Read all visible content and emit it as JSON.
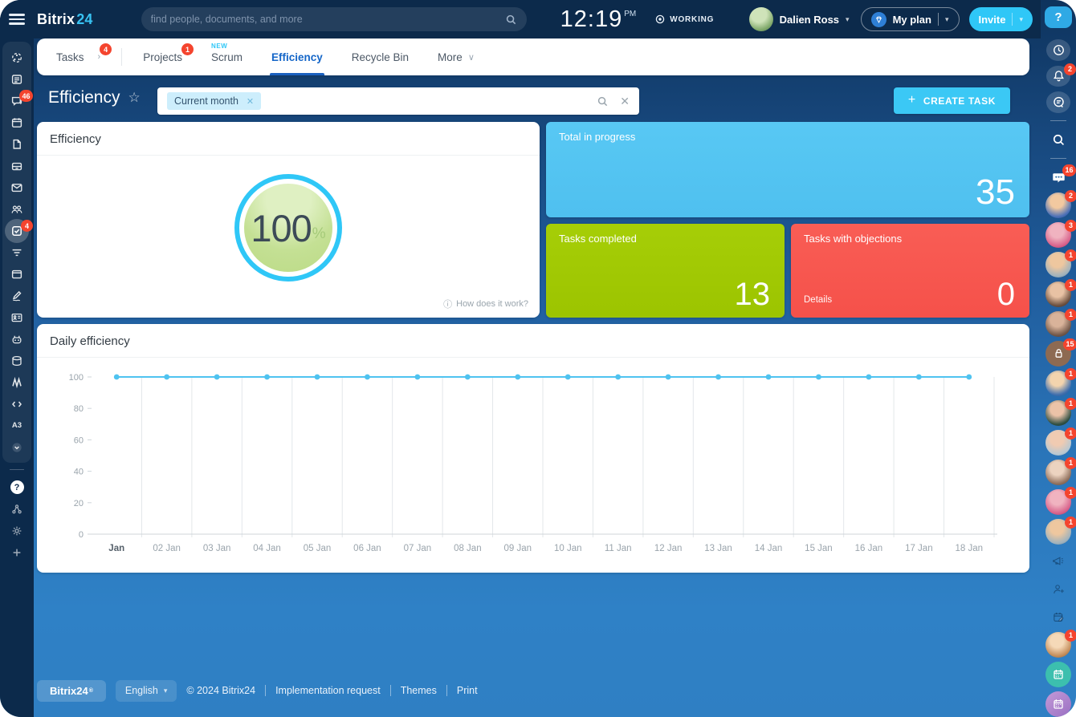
{
  "app": {
    "brand": "Bitrix",
    "brand_num": "24"
  },
  "topbar": {
    "search_placeholder": "find people, documents, and more",
    "time": "12:19",
    "meridiem": "PM",
    "status_label": "WORKING",
    "user_name": "Dalien Ross",
    "my_plan_label": "My plan",
    "invite_label": "Invite"
  },
  "tabs": {
    "tasks": "Tasks",
    "tasks_badge": "4",
    "projects": "Projects",
    "projects_badge": "1",
    "scrum": "Scrum",
    "scrum_tag": "NEW",
    "efficiency": "Efficiency",
    "recycle_bin": "Recycle Bin",
    "more": "More"
  },
  "page": {
    "title": "Efficiency",
    "filter_chip": "Current month",
    "create_task": "CREATE TASK"
  },
  "stats": {
    "efficiency_card_title": "Efficiency",
    "efficiency_value": "100",
    "efficiency_unit": "%",
    "help_link": "How does it work?",
    "total_in_progress_label": "Total in progress",
    "total_in_progress_value": "35",
    "tasks_completed_label": "Tasks completed",
    "tasks_completed_value": "13",
    "objections_label": "Tasks with objections",
    "objections_value": "0",
    "objections_details": "Details"
  },
  "colors": {
    "accent_cyan": "#2fc7f7",
    "blue_card": "#55c6f3",
    "green_card": "#9cc400",
    "red_card": "#f8564e",
    "active_tab": "#1566c8"
  },
  "chart_data": {
    "type": "line",
    "title": "Daily efficiency",
    "x": [
      "Jan",
      "02 Jan",
      "03 Jan",
      "04 Jan",
      "05 Jan",
      "06 Jan",
      "07 Jan",
      "08 Jan",
      "09 Jan",
      "10 Jan",
      "11 Jan",
      "12 Jan",
      "13 Jan",
      "14 Jan",
      "15 Jan",
      "16 Jan",
      "17 Jan",
      "18 Jan"
    ],
    "values": [
      100,
      100,
      100,
      100,
      100,
      100,
      100,
      100,
      100,
      100,
      100,
      100,
      100,
      100,
      100,
      100,
      100,
      100
    ],
    "ylim": [
      0,
      100
    ],
    "yticks": [
      0,
      20,
      40,
      60,
      80,
      100
    ],
    "line_color": "#4fc3f0",
    "grid": true,
    "legend": false,
    "xlabel": "",
    "ylabel": ""
  },
  "left_rail": {
    "chat_badge": "46",
    "tasks_badge": "4",
    "a3_label": "A3"
  },
  "right_rail": {
    "bell_badge": "2",
    "group_chat_badge": "16",
    "avatar_badges": [
      "2",
      "3",
      "1",
      "1",
      "1"
    ],
    "lock_badge": "15",
    "avatar_badges2": [
      "1",
      "1",
      "1",
      "1",
      "1",
      "1"
    ],
    "avatar_badge3": "1"
  },
  "footer": {
    "brand": "Bitrix24",
    "reg": "®",
    "language": "English",
    "copyright": "© 2024 Bitrix24",
    "links": [
      "Implementation request",
      "Themes",
      "Print"
    ]
  }
}
